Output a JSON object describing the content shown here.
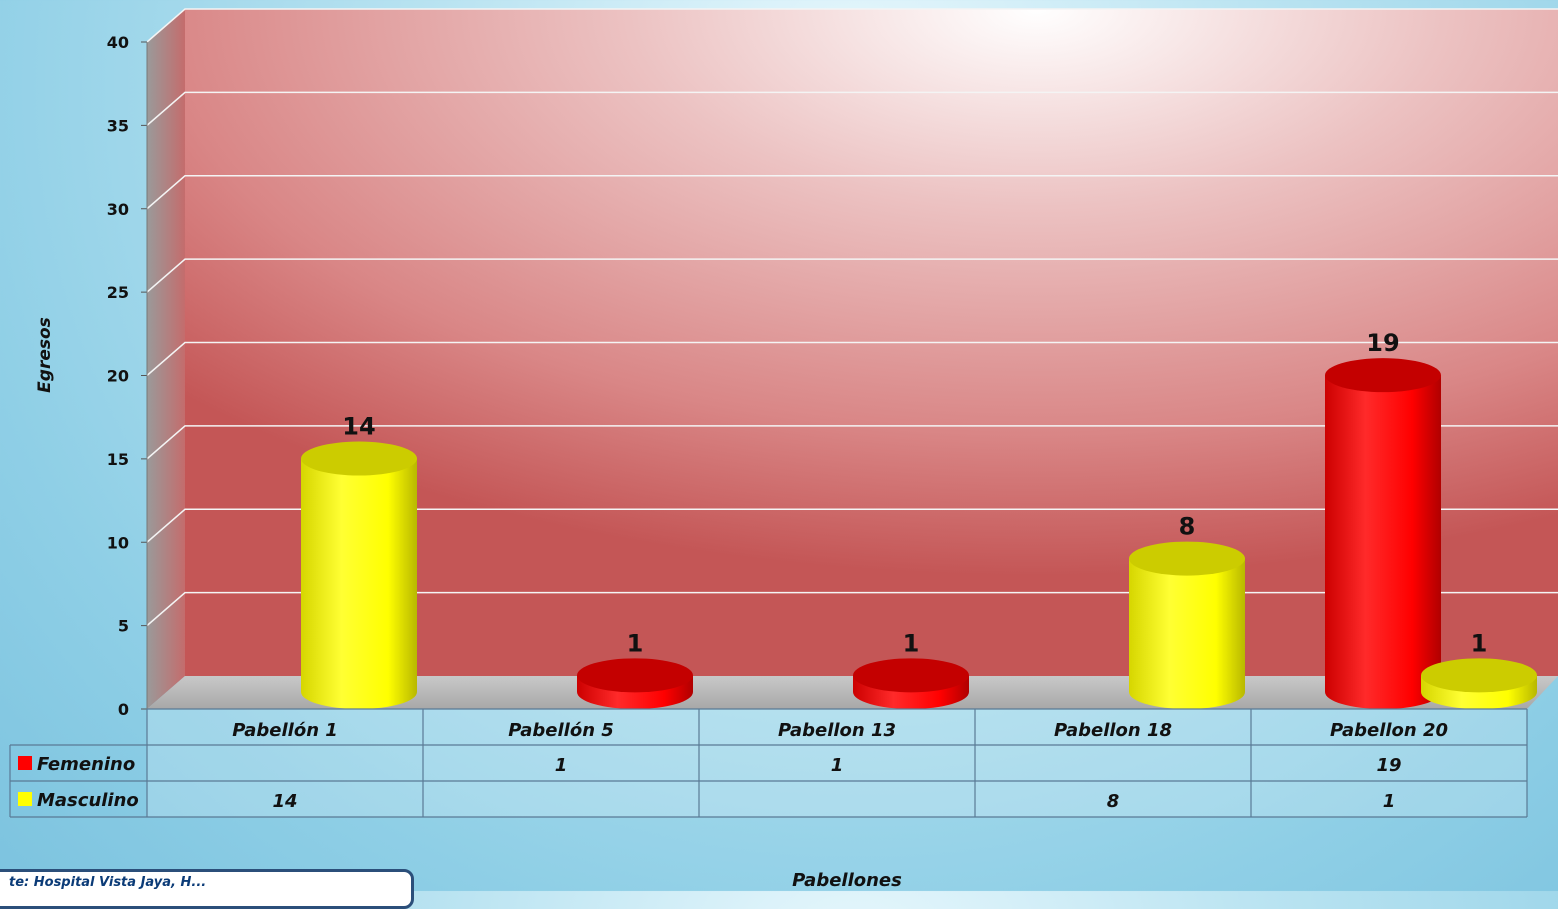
{
  "chart_data": {
    "type": "bar",
    "categories": [
      "Pabellón 1",
      "Pabellón 5",
      "Pabellon 13",
      "Pabellon 18",
      "Pabellon 20"
    ],
    "series": [
      {
        "name": "Femenino",
        "color": "#ff0000",
        "values": [
          null,
          1,
          1,
          null,
          19
        ]
      },
      {
        "name": "Masculino",
        "color": "#ffff00",
        "values": [
          14,
          null,
          null,
          8,
          1
        ]
      }
    ],
    "xlabel": "Pabellones",
    "ylabel": "Egresos",
    "ylim": [
      0,
      40
    ],
    "yticks": [
      0,
      5,
      10,
      15,
      20,
      25,
      30,
      35,
      40
    ],
    "data_table": true,
    "grid": true
  },
  "source_note": "te: Hospital Vista Jaya, H..."
}
